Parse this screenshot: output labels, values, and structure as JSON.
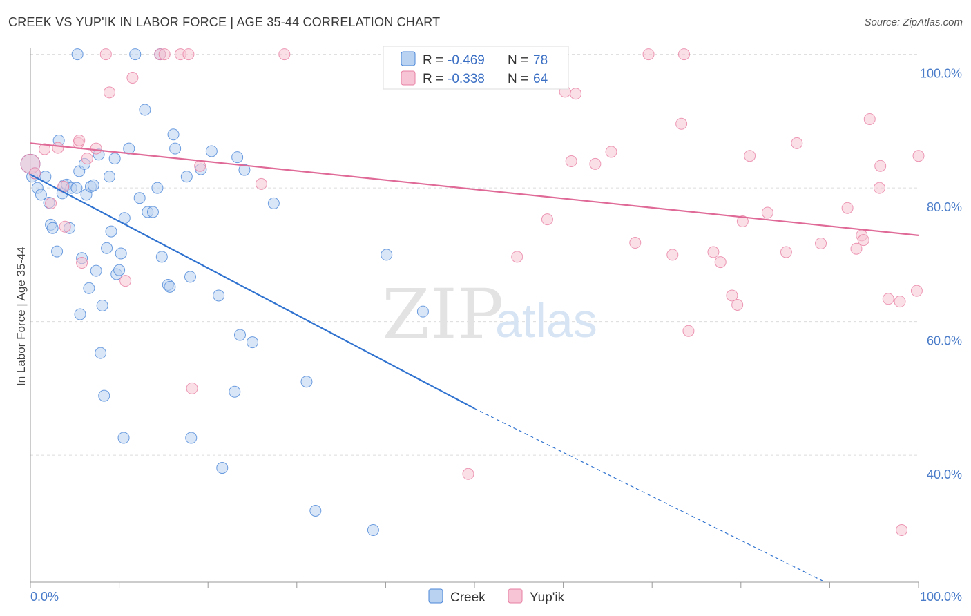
{
  "title": "CREEK VS YUP'IK IN LABOR FORCE | AGE 35-44 CORRELATION CHART",
  "source": "Source: ZipAtlas.com",
  "watermark": {
    "zip": "ZIP",
    "atlas": "atlas"
  },
  "colors": {
    "creek": "#4a86d8",
    "yupik": "#e87fa3",
    "creek_fill": "#b9d2f1",
    "yupik_fill": "#f6c4d4",
    "creek_line": "#2f72cf",
    "yupik_line": "#e06a97"
  },
  "stats": {
    "creek": {
      "r_label": "R =",
      "r": "-0.469",
      "n_label": "N =",
      "n": "78"
    },
    "yupik": {
      "r_label": "R =",
      "r": "-0.338",
      "n_label": "N =",
      "n": "64"
    }
  },
  "chart_data": {
    "type": "scatter",
    "title": "CREEK VS YUP'IK IN LABOR FORCE | AGE 35-44 CORRELATION CHART",
    "xlabel": "",
    "ylabel": "In Labor Force | Age 35-44",
    "xlim": [
      0,
      100
    ],
    "ylim": [
      21,
      101
    ],
    "x_tick_labels": [
      "0.0%",
      "100.0%"
    ],
    "y_ticks": [
      40,
      60,
      80,
      100
    ],
    "y_tick_labels": [
      "40.0%",
      "60.0%",
      "80.0%",
      "100.0%"
    ],
    "grid": true,
    "legend": [
      "Creek",
      "Yup'ik"
    ],
    "series": [
      {
        "name": "Creek",
        "trend": {
          "x0": 0,
          "y0": 82,
          "x1": 50,
          "y1": 47,
          "dash_to_x": 89.5,
          "dash_to_y": 21
        },
        "points": [
          [
            0.0,
            83.6
          ],
          [
            0.2,
            81.7
          ],
          [
            0.5,
            82.2
          ],
          [
            0.8,
            80.0
          ],
          [
            1.2,
            79.0
          ],
          [
            1.7,
            81.7
          ],
          [
            2.1,
            77.8
          ],
          [
            2.3,
            74.5
          ],
          [
            2.5,
            74.0
          ],
          [
            3.0,
            70.5
          ],
          [
            3.2,
            87.1
          ],
          [
            3.6,
            79.2
          ],
          [
            3.8,
            80.4
          ],
          [
            4.1,
            80.5
          ],
          [
            4.4,
            74.0
          ],
          [
            4.6,
            80.0
          ],
          [
            5.2,
            80.0
          ],
          [
            5.3,
            100.0
          ],
          [
            5.5,
            82.5
          ],
          [
            5.6,
            61.1
          ],
          [
            5.8,
            69.5
          ],
          [
            6.1,
            83.6
          ],
          [
            6.3,
            79.0
          ],
          [
            6.6,
            65.0
          ],
          [
            6.8,
            80.2
          ],
          [
            7.1,
            80.4
          ],
          [
            7.4,
            67.6
          ],
          [
            7.7,
            85.0
          ],
          [
            7.9,
            55.3
          ],
          [
            8.1,
            62.4
          ],
          [
            8.3,
            48.9
          ],
          [
            8.6,
            71.0
          ],
          [
            8.9,
            81.7
          ],
          [
            9.1,
            73.5
          ],
          [
            9.5,
            84.4
          ],
          [
            9.7,
            67.1
          ],
          [
            10.0,
            67.7
          ],
          [
            10.2,
            70.2
          ],
          [
            10.5,
            42.6
          ],
          [
            10.6,
            75.5
          ],
          [
            11.1,
            85.9
          ],
          [
            11.8,
            100.0
          ],
          [
            12.3,
            78.5
          ],
          [
            12.9,
            91.7
          ],
          [
            13.2,
            76.4
          ],
          [
            13.8,
            76.4
          ],
          [
            14.3,
            80.0
          ],
          [
            14.6,
            100.0
          ],
          [
            14.8,
            69.7
          ],
          [
            15.5,
            65.5
          ],
          [
            15.7,
            65.2
          ],
          [
            16.1,
            88.0
          ],
          [
            16.3,
            85.9
          ],
          [
            17.6,
            81.7
          ],
          [
            18.0,
            66.7
          ],
          [
            18.1,
            42.6
          ],
          [
            19.2,
            82.8
          ],
          [
            20.4,
            85.5
          ],
          [
            21.2,
            63.9
          ],
          [
            21.6,
            38.1
          ],
          [
            23.0,
            49.5
          ],
          [
            23.3,
            84.6
          ],
          [
            23.6,
            58.0
          ],
          [
            24.1,
            82.7
          ],
          [
            25.0,
            56.9
          ],
          [
            27.4,
            77.7
          ],
          [
            31.1,
            51.0
          ],
          [
            32.1,
            31.7
          ],
          [
            38.6,
            28.8
          ],
          [
            40.1,
            70.0
          ],
          [
            44.2,
            61.5
          ]
        ]
      },
      {
        "name": "Yup'ik",
        "trend": {
          "x0": 0,
          "y0": 86.7,
          "x1": 100,
          "y1": 72.9
        },
        "points": [
          [
            0.0,
            83.6
          ],
          [
            0.5,
            82.2
          ],
          [
            1.6,
            85.8
          ],
          [
            2.3,
            77.7
          ],
          [
            3.1,
            86.0
          ],
          [
            3.7,
            80.2
          ],
          [
            3.9,
            74.2
          ],
          [
            5.4,
            86.7
          ],
          [
            5.5,
            87.1
          ],
          [
            5.8,
            68.8
          ],
          [
            6.4,
            84.4
          ],
          [
            7.4,
            85.9
          ],
          [
            8.5,
            100.0
          ],
          [
            8.9,
            94.3
          ],
          [
            10.7,
            66.1
          ],
          [
            11.5,
            96.5
          ],
          [
            14.6,
            100.0
          ],
          [
            15.1,
            100.0
          ],
          [
            16.9,
            100.0
          ],
          [
            17.8,
            100.0
          ],
          [
            18.2,
            50.0
          ],
          [
            19.1,
            83.3
          ],
          [
            26.0,
            80.6
          ],
          [
            28.6,
            100.0
          ],
          [
            49.3,
            37.2
          ],
          [
            54.8,
            69.7
          ],
          [
            58.2,
            75.3
          ],
          [
            60.2,
            94.4
          ],
          [
            60.9,
            84.0
          ],
          [
            61.4,
            94.1
          ],
          [
            63.6,
            83.6
          ],
          [
            65.4,
            85.4
          ],
          [
            68.1,
            71.8
          ],
          [
            69.6,
            100.0
          ],
          [
            72.3,
            70.0
          ],
          [
            73.3,
            89.6
          ],
          [
            73.6,
            100.0
          ],
          [
            74.1,
            58.6
          ],
          [
            76.9,
            70.4
          ],
          [
            77.7,
            68.9
          ],
          [
            79.0,
            63.9
          ],
          [
            79.6,
            62.5
          ],
          [
            80.2,
            75.0
          ],
          [
            81.0,
            84.8
          ],
          [
            83.0,
            76.3
          ],
          [
            85.1,
            70.4
          ],
          [
            86.3,
            86.7
          ],
          [
            89.0,
            71.7
          ],
          [
            92.0,
            77.0
          ],
          [
            93.0,
            70.9
          ],
          [
            93.6,
            72.9
          ],
          [
            93.8,
            72.2
          ],
          [
            94.5,
            90.3
          ],
          [
            95.6,
            80.0
          ],
          [
            95.7,
            83.3
          ],
          [
            96.6,
            63.4
          ],
          [
            97.9,
            63.0
          ],
          [
            98.1,
            28.8
          ],
          [
            99.8,
            64.6
          ],
          [
            100.0,
            84.8
          ]
        ]
      }
    ]
  }
}
